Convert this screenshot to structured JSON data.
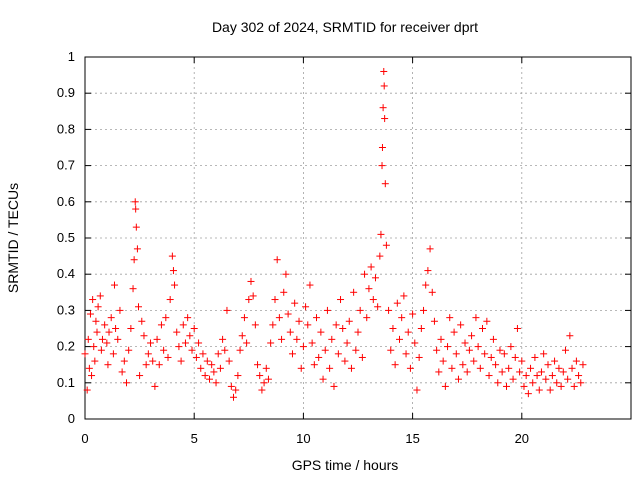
{
  "chart_data": {
    "type": "scatter",
    "title": "Day 302 of 2024, SRMTID for receiver dprt",
    "xlabel": "GPS time / hours",
    "ylabel": "SRMTID / TECUs",
    "xlim": [
      0,
      25
    ],
    "ylim": [
      0,
      1
    ],
    "xticks": [
      "0",
      "5",
      "10",
      "15",
      "20"
    ],
    "yticks": [
      "0",
      "0.1",
      "0.2",
      "0.3",
      "0.4",
      "0.5",
      "0.6",
      "0.7",
      "0.8",
      "0.9",
      "1"
    ],
    "grid": true,
    "marker": "plus",
    "color": "#ff0000",
    "series": [
      {
        "name": "dprt",
        "points": [
          [
            0.0,
            0.18
          ],
          [
            0.1,
            0.08
          ],
          [
            0.15,
            0.22
          ],
          [
            0.2,
            0.14
          ],
          [
            0.25,
            0.29
          ],
          [
            0.3,
            0.12
          ],
          [
            0.35,
            0.33
          ],
          [
            0.4,
            0.2
          ],
          [
            0.45,
            0.16
          ],
          [
            0.5,
            0.27
          ],
          [
            0.55,
            0.24
          ],
          [
            0.6,
            0.31
          ],
          [
            0.7,
            0.34
          ],
          [
            0.75,
            0.19
          ],
          [
            0.8,
            0.22
          ],
          [
            0.9,
            0.26
          ],
          [
            1.0,
            0.21
          ],
          [
            1.05,
            0.15
          ],
          [
            1.1,
            0.24
          ],
          [
            1.2,
            0.28
          ],
          [
            1.3,
            0.18
          ],
          [
            1.35,
            0.37
          ],
          [
            1.4,
            0.25
          ],
          [
            1.5,
            0.22
          ],
          [
            1.6,
            0.3
          ],
          [
            1.7,
            0.13
          ],
          [
            1.8,
            0.16
          ],
          [
            1.9,
            0.1
          ],
          [
            2.0,
            0.19
          ],
          [
            2.1,
            0.25
          ],
          [
            2.2,
            0.36
          ],
          [
            2.25,
            0.44
          ],
          [
            2.3,
            0.6
          ],
          [
            2.32,
            0.58
          ],
          [
            2.35,
            0.53
          ],
          [
            2.4,
            0.47
          ],
          [
            2.45,
            0.31
          ],
          [
            2.5,
            0.12
          ],
          [
            2.6,
            0.27
          ],
          [
            2.7,
            0.23
          ],
          [
            2.8,
            0.15
          ],
          [
            2.9,
            0.18
          ],
          [
            3.0,
            0.21
          ],
          [
            3.1,
            0.16
          ],
          [
            3.2,
            0.09
          ],
          [
            3.3,
            0.22
          ],
          [
            3.4,
            0.15
          ],
          [
            3.5,
            0.26
          ],
          [
            3.6,
            0.19
          ],
          [
            3.7,
            0.28
          ],
          [
            3.8,
            0.17
          ],
          [
            3.9,
            0.33
          ],
          [
            4.0,
            0.45
          ],
          [
            4.05,
            0.41
          ],
          [
            4.1,
            0.37
          ],
          [
            4.2,
            0.24
          ],
          [
            4.3,
            0.2
          ],
          [
            4.4,
            0.16
          ],
          [
            4.5,
            0.26
          ],
          [
            4.6,
            0.21
          ],
          [
            4.7,
            0.28
          ],
          [
            4.8,
            0.23
          ],
          [
            4.9,
            0.19
          ],
          [
            5.0,
            0.25
          ],
          [
            5.1,
            0.17
          ],
          [
            5.2,
            0.21
          ],
          [
            5.3,
            0.14
          ],
          [
            5.4,
            0.18
          ],
          [
            5.5,
            0.12
          ],
          [
            5.6,
            0.16
          ],
          [
            5.7,
            0.11
          ],
          [
            5.8,
            0.15
          ],
          [
            5.9,
            0.13
          ],
          [
            6.0,
            0.1
          ],
          [
            6.1,
            0.18
          ],
          [
            6.2,
            0.14
          ],
          [
            6.3,
            0.22
          ],
          [
            6.4,
            0.19
          ],
          [
            6.5,
            0.3
          ],
          [
            6.6,
            0.16
          ],
          [
            6.7,
            0.09
          ],
          [
            6.8,
            0.06
          ],
          [
            6.9,
            0.08
          ],
          [
            7.0,
            0.12
          ],
          [
            7.1,
            0.19
          ],
          [
            7.2,
            0.23
          ],
          [
            7.3,
            0.28
          ],
          [
            7.4,
            0.21
          ],
          [
            7.5,
            0.33
          ],
          [
            7.6,
            0.38
          ],
          [
            7.7,
            0.34
          ],
          [
            7.8,
            0.26
          ],
          [
            7.9,
            0.15
          ],
          [
            8.0,
            0.12
          ],
          [
            8.1,
            0.08
          ],
          [
            8.2,
            0.1
          ],
          [
            8.3,
            0.14
          ],
          [
            8.4,
            0.11
          ],
          [
            8.5,
            0.21
          ],
          [
            8.6,
            0.26
          ],
          [
            8.7,
            0.33
          ],
          [
            8.8,
            0.44
          ],
          [
            8.9,
            0.28
          ],
          [
            9.0,
            0.22
          ],
          [
            9.1,
            0.35
          ],
          [
            9.2,
            0.4
          ],
          [
            9.3,
            0.29
          ],
          [
            9.4,
            0.24
          ],
          [
            9.5,
            0.18
          ],
          [
            9.6,
            0.32
          ],
          [
            9.7,
            0.22
          ],
          [
            9.8,
            0.27
          ],
          [
            9.9,
            0.14
          ],
          [
            10.0,
            0.2
          ],
          [
            10.1,
            0.31
          ],
          [
            10.2,
            0.26
          ],
          [
            10.3,
            0.37
          ],
          [
            10.4,
            0.21
          ],
          [
            10.5,
            0.15
          ],
          [
            10.6,
            0.28
          ],
          [
            10.7,
            0.17
          ],
          [
            10.8,
            0.24
          ],
          [
            10.9,
            0.11
          ],
          [
            11.0,
            0.19
          ],
          [
            11.1,
            0.3
          ],
          [
            11.2,
            0.14
          ],
          [
            11.3,
            0.22
          ],
          [
            11.4,
            0.09
          ],
          [
            11.5,
            0.26
          ],
          [
            11.6,
            0.18
          ],
          [
            11.7,
            0.33
          ],
          [
            11.8,
            0.25
          ],
          [
            11.9,
            0.16
          ],
          [
            12.0,
            0.21
          ],
          [
            12.1,
            0.27
          ],
          [
            12.2,
            0.14
          ],
          [
            12.3,
            0.35
          ],
          [
            12.4,
            0.19
          ],
          [
            12.5,
            0.24
          ],
          [
            12.6,
            0.3
          ],
          [
            12.7,
            0.17
          ],
          [
            12.8,
            0.4
          ],
          [
            12.9,
            0.28
          ],
          [
            13.0,
            0.36
          ],
          [
            13.1,
            0.42
          ],
          [
            13.2,
            0.33
          ],
          [
            13.3,
            0.39
          ],
          [
            13.4,
            0.31
          ],
          [
            13.5,
            0.45
          ],
          [
            13.55,
            0.51
          ],
          [
            13.6,
            0.7
          ],
          [
            13.62,
            0.75
          ],
          [
            13.65,
            0.86
          ],
          [
            13.68,
            0.96
          ],
          [
            13.7,
            0.92
          ],
          [
            13.72,
            0.83
          ],
          [
            13.75,
            0.65
          ],
          [
            13.8,
            0.48
          ],
          [
            13.9,
            0.3
          ],
          [
            14.0,
            0.19
          ],
          [
            14.1,
            0.25
          ],
          [
            14.2,
            0.15
          ],
          [
            14.3,
            0.32
          ],
          [
            14.4,
            0.22
          ],
          [
            14.5,
            0.28
          ],
          [
            14.6,
            0.34
          ],
          [
            14.7,
            0.18
          ],
          [
            14.8,
            0.24
          ],
          [
            14.9,
            0.14
          ],
          [
            15.0,
            0.29
          ],
          [
            15.1,
            0.21
          ],
          [
            15.2,
            0.08
          ],
          [
            15.3,
            0.17
          ],
          [
            15.4,
            0.25
          ],
          [
            15.5,
            0.3
          ],
          [
            15.6,
            0.37
          ],
          [
            15.7,
            0.41
          ],
          [
            15.8,
            0.47
          ],
          [
            15.9,
            0.35
          ],
          [
            16.0,
            0.27
          ],
          [
            16.1,
            0.19
          ],
          [
            16.2,
            0.13
          ],
          [
            16.3,
            0.22
          ],
          [
            16.4,
            0.16
          ],
          [
            16.5,
            0.09
          ],
          [
            16.6,
            0.2
          ],
          [
            16.7,
            0.28
          ],
          [
            16.8,
            0.14
          ],
          [
            16.9,
            0.24
          ],
          [
            17.0,
            0.18
          ],
          [
            17.1,
            0.11
          ],
          [
            17.2,
            0.26
          ],
          [
            17.3,
            0.15
          ],
          [
            17.4,
            0.21
          ],
          [
            17.5,
            0.13
          ],
          [
            17.6,
            0.19
          ],
          [
            17.7,
            0.23
          ],
          [
            17.8,
            0.16
          ],
          [
            17.9,
            0.28
          ],
          [
            18.0,
            0.2
          ],
          [
            18.1,
            0.14
          ],
          [
            18.2,
            0.25
          ],
          [
            18.3,
            0.18
          ],
          [
            18.4,
            0.27
          ],
          [
            18.5,
            0.12
          ],
          [
            18.6,
            0.17
          ],
          [
            18.7,
            0.22
          ],
          [
            18.8,
            0.15
          ],
          [
            18.9,
            0.1
          ],
          [
            19.0,
            0.19
          ],
          [
            19.1,
            0.13
          ],
          [
            19.2,
            0.18
          ],
          [
            19.3,
            0.09
          ],
          [
            19.4,
            0.14
          ],
          [
            19.5,
            0.2
          ],
          [
            19.6,
            0.11
          ],
          [
            19.7,
            0.17
          ],
          [
            19.8,
            0.25
          ],
          [
            19.9,
            0.13
          ],
          [
            20.0,
            0.16
          ],
          [
            20.1,
            0.09
          ],
          [
            20.2,
            0.12
          ],
          [
            20.3,
            0.07
          ],
          [
            20.4,
            0.14
          ],
          [
            20.5,
            0.1
          ],
          [
            20.6,
            0.17
          ],
          [
            20.7,
            0.12
          ],
          [
            20.8,
            0.08
          ],
          [
            20.9,
            0.13
          ],
          [
            21.0,
            0.18
          ],
          [
            21.1,
            0.11
          ],
          [
            21.2,
            0.15
          ],
          [
            21.3,
            0.08
          ],
          [
            21.4,
            0.12
          ],
          [
            21.5,
            0.16
          ],
          [
            21.6,
            0.1
          ],
          [
            21.7,
            0.14
          ],
          [
            21.8,
            0.09
          ],
          [
            21.9,
            0.13
          ],
          [
            22.0,
            0.19
          ],
          [
            22.1,
            0.11
          ],
          [
            22.2,
            0.23
          ],
          [
            22.3,
            0.14
          ],
          [
            22.4,
            0.09
          ],
          [
            22.5,
            0.16
          ],
          [
            22.6,
            0.12
          ],
          [
            22.7,
            0.1
          ],
          [
            22.8,
            0.15
          ]
        ]
      }
    ]
  }
}
